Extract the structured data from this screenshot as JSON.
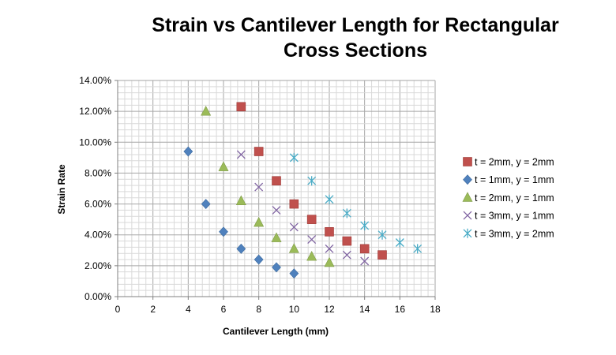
{
  "chart_data": {
    "type": "scatter",
    "title_lines": [
      "Strain vs Cantilever Length for Rectangular",
      "Cross Sections"
    ],
    "xlabel": "Cantilever Length (mm)",
    "ylabel": "Strain Rate",
    "xlim": [
      0,
      18
    ],
    "ylim": [
      0,
      0.14
    ],
    "x_ticks": [
      "0",
      "2",
      "4",
      "6",
      "8",
      "10",
      "12",
      "14",
      "16",
      "18"
    ],
    "y_ticks": [
      "0.00%",
      "2.00%",
      "4.00%",
      "6.00%",
      "8.00%",
      "10.00%",
      "12.00%",
      "14.00%"
    ],
    "grid": true,
    "legend_position": "right",
    "series": [
      {
        "name": "t = 2mm, y = 2mm",
        "marker": "square",
        "color": "#c0504d",
        "x": [
          7,
          8,
          9,
          10,
          11,
          12,
          13,
          14,
          15
        ],
        "y": [
          0.123,
          0.094,
          0.075,
          0.06,
          0.05,
          0.042,
          0.036,
          0.031,
          0.027
        ]
      },
      {
        "name": "t = 1mm, y = 1mm",
        "marker": "diamond",
        "color": "#4f81bd",
        "x": [
          4,
          5,
          6,
          7,
          8,
          9,
          10
        ],
        "y": [
          0.094,
          0.06,
          0.042,
          0.031,
          0.024,
          0.019,
          0.015
        ]
      },
      {
        "name": "t = 2mm, y = 1mm",
        "marker": "triangle",
        "color": "#9bbb59",
        "x": [
          5,
          6,
          7,
          8,
          9,
          10,
          11,
          12
        ],
        "y": [
          0.12,
          0.084,
          0.062,
          0.048,
          0.038,
          0.031,
          0.026,
          0.022
        ]
      },
      {
        "name": "t = 3mm, y = 1mm",
        "marker": "x",
        "color": "#8064a2",
        "x": [
          7,
          8,
          9,
          10,
          11,
          12,
          13,
          14
        ],
        "y": [
          0.092,
          0.071,
          0.056,
          0.045,
          0.037,
          0.031,
          0.027,
          0.023
        ]
      },
      {
        "name": "t = 3mm, y = 2mm",
        "marker": "star",
        "color": "#4bacc6",
        "x": [
          10,
          11,
          12,
          13,
          14,
          15,
          16,
          17
        ],
        "y": [
          0.09,
          0.075,
          0.063,
          0.054,
          0.046,
          0.04,
          0.035,
          0.031
        ]
      }
    ]
  }
}
